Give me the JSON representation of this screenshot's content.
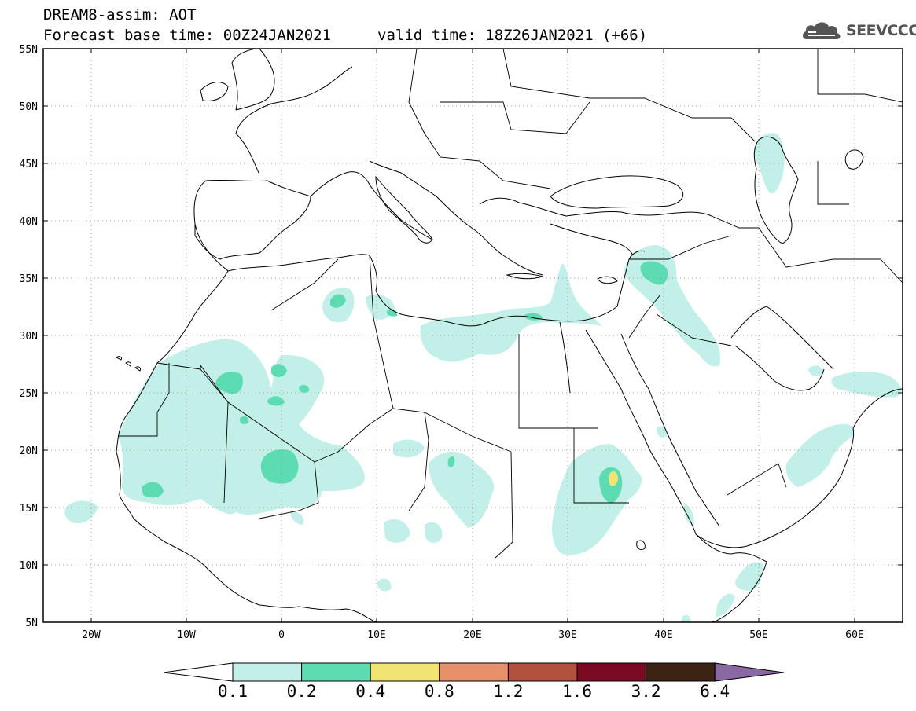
{
  "header": {
    "title_line1": "DREAM8-assim: AOT",
    "title_line2": "Forecast base time: 00Z24JAN2021",
    "valid_time": "valid time: 18Z26JAN2021 (+66)",
    "logo_text": "SEEVCCC",
    "logo_icon": "cloud-icon"
  },
  "map": {
    "variable": "AOT",
    "region": "North Africa / Middle East / Europe",
    "lat_labels": [
      "55N",
      "50N",
      "45N",
      "40N",
      "35N",
      "30N",
      "25N",
      "20N",
      "15N",
      "10N",
      "5N"
    ],
    "lon_labels": [
      "20W",
      "10W",
      "0",
      "10E",
      "20E",
      "30E",
      "40E",
      "50E",
      "60E"
    ],
    "lat_range": [
      5,
      55
    ],
    "lon_range": [
      -25,
      65
    ],
    "grid": "dotted",
    "colors": {
      "c_0_1": "#c2f0e8",
      "c_0_2": "#5ddcb4",
      "c_0_4": "#f2e472",
      "c_0_8": "#e8906a",
      "c_1_2": "#b2523e",
      "c_1_6": "#7c0a24",
      "c_3_2": "#3c2414",
      "c_6_4": "#8a68a4"
    }
  },
  "colorbar": {
    "labels": [
      "0.1",
      "0.2",
      "0.4",
      "0.8",
      "1.2",
      "1.6",
      "3.2",
      "6.4"
    ],
    "colors": [
      "#c2f0e8",
      "#5ddcb4",
      "#f2e472",
      "#e8906a",
      "#b2523e",
      "#7c0a24",
      "#3c2414"
    ],
    "under_color": "#ffffff",
    "over_color": "#8a68a4"
  }
}
